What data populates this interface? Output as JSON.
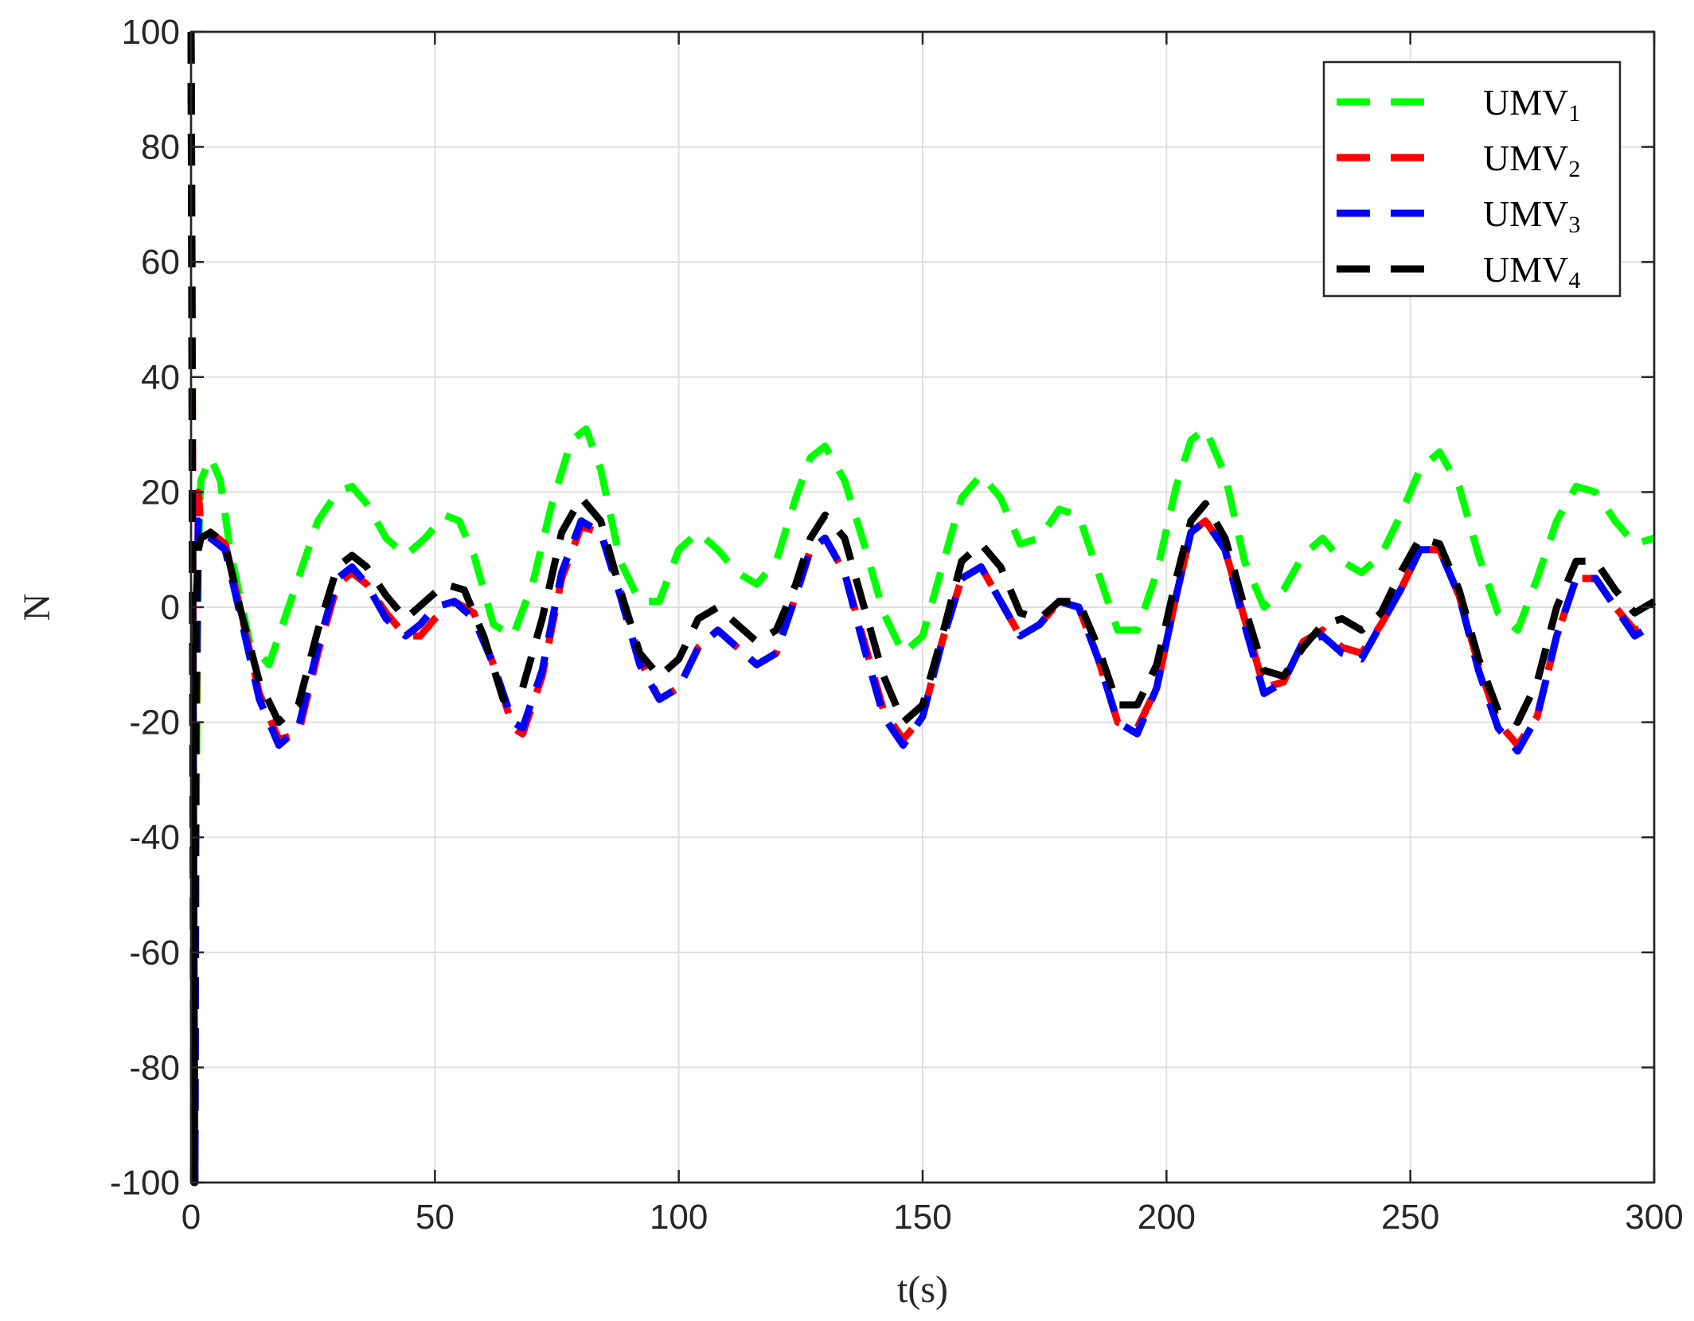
{
  "chart_data": {
    "type": "line",
    "title": "",
    "xlabel": "t(s)",
    "ylabel": "N",
    "xlim": [
      0,
      300
    ],
    "ylim": [
      -100,
      100
    ],
    "xticks": [
      0,
      50,
      100,
      150,
      200,
      250,
      300
    ],
    "yticks": [
      -100,
      -80,
      -60,
      -40,
      -20,
      0,
      20,
      40,
      60,
      80,
      100
    ],
    "grid": true,
    "legend": {
      "placement": "top-right"
    },
    "series": [
      {
        "name": "UMV",
        "subscript": "1",
        "color": "#00ff00",
        "style": "dashed",
        "x": [
          0,
          0.2,
          0.4,
          0.6,
          0.8,
          1.0,
          1.5,
          2,
          4,
          6,
          8,
          12,
          16,
          20,
          26,
          30,
          33,
          36,
          40,
          44,
          48,
          52,
          55,
          58,
          62,
          66,
          70,
          74,
          78,
          81,
          84,
          88,
          92,
          96,
          100,
          104,
          108,
          112,
          116,
          120,
          124,
          127,
          130,
          134,
          138,
          142,
          146,
          150,
          154,
          158,
          162,
          166,
          170,
          174,
          178,
          182,
          186,
          190,
          194,
          198,
          202,
          205,
          208,
          212,
          216,
          220,
          224,
          228,
          232,
          236,
          240,
          244,
          248,
          252,
          256,
          260,
          264,
          268,
          272,
          276,
          280,
          284,
          288,
          292,
          296,
          300
        ],
        "values": [
          100,
          60,
          0,
          -60,
          -100,
          -40,
          10,
          22,
          26,
          22,
          10,
          -6,
          -10,
          0,
          15,
          20,
          21,
          18,
          12,
          9,
          12,
          16,
          15,
          9,
          -3,
          -5,
          4,
          18,
          29,
          31,
          24,
          8,
          1,
          1,
          10,
          13,
          10,
          6,
          4,
          8,
          19,
          26,
          28,
          22,
          11,
          -1,
          -8,
          -5,
          7,
          19,
          23,
          19,
          11,
          12,
          17,
          16,
          6,
          -4,
          -4,
          6,
          21,
          29,
          31,
          23,
          8,
          0,
          3,
          9,
          12,
          8,
          6,
          9,
          16,
          24,
          27,
          21,
          9,
          -1,
          -4,
          5,
          15,
          21,
          20,
          15,
          11,
          12
        ]
      },
      {
        "name": "UMV",
        "subscript": "2",
        "color": "#ff0000",
        "style": "dashed",
        "x": [
          0,
          0.2,
          0.4,
          0.6,
          0.8,
          1.0,
          1.5,
          2,
          4,
          7,
          10,
          14,
          18,
          22,
          26,
          30,
          33,
          36,
          40,
          44,
          47,
          50,
          54,
          58,
          62,
          66,
          68,
          72,
          76,
          80,
          84,
          88,
          92,
          96,
          100,
          104,
          108,
          112,
          116,
          120,
          124,
          127,
          130,
          134,
          138,
          142,
          146,
          150,
          154,
          158,
          162,
          166,
          170,
          174,
          178,
          182,
          186,
          190,
          194,
          198,
          202,
          205,
          208,
          212,
          216,
          220,
          224,
          228,
          232,
          236,
          240,
          244,
          248,
          252,
          256,
          260,
          264,
          268,
          272,
          276,
          280,
          284,
          288,
          292,
          296,
          300
        ],
        "values": [
          100,
          60,
          0,
          -60,
          -100,
          -30,
          20,
          14,
          13,
          11,
          0,
          -15,
          -23,
          -22,
          -8,
          4,
          6,
          4,
          -1,
          -5,
          -5,
          -2,
          1,
          -1,
          -10,
          -21,
          -22,
          -12,
          5,
          14,
          13,
          3,
          -9,
          -16,
          -14,
          -7,
          -4,
          -7,
          -10,
          -8,
          2,
          10,
          12,
          6,
          -6,
          -18,
          -23,
          -19,
          -6,
          5,
          7,
          1,
          -5,
          -3,
          1,
          0,
          -9,
          -20,
          -21,
          -14,
          2,
          13,
          15,
          10,
          -2,
          -14,
          -13,
          -6,
          -4,
          -7,
          -8,
          -3,
          3,
          10,
          10,
          2,
          -10,
          -20,
          -24,
          -19,
          -5,
          5,
          5,
          0,
          -4,
          -3
        ]
      },
      {
        "name": "UMV",
        "subscript": "3",
        "color": "#0000ff",
        "style": "dashed",
        "x": [
          0,
          0.2,
          0.4,
          0.6,
          0.8,
          1.0,
          1.5,
          2,
          4,
          7,
          10,
          14,
          18,
          22,
          26,
          30,
          33,
          36,
          40,
          44,
          47,
          50,
          54,
          58,
          62,
          66,
          68,
          72,
          76,
          80,
          84,
          88,
          92,
          96,
          100,
          104,
          108,
          112,
          116,
          120,
          124,
          127,
          130,
          134,
          138,
          142,
          146,
          150,
          154,
          158,
          162,
          166,
          170,
          174,
          178,
          182,
          186,
          190,
          194,
          198,
          202,
          205,
          208,
          212,
          216,
          220,
          224,
          228,
          232,
          236,
          240,
          244,
          248,
          252,
          256,
          260,
          264,
          268,
          272,
          276,
          280,
          284,
          288,
          292,
          296,
          300
        ],
        "values": [
          100,
          50,
          -20,
          -70,
          -100,
          -20,
          15,
          13,
          12,
          10,
          -1,
          -16,
          -24,
          -21,
          -7,
          5,
          7,
          4,
          -2,
          -5,
          -3,
          0,
          1,
          -2,
          -10,
          -20,
          -21,
          -11,
          6,
          15,
          13,
          2,
          -10,
          -16,
          -14,
          -7,
          -4,
          -7,
          -10,
          -8,
          2,
          10,
          12,
          6,
          -7,
          -19,
          -24,
          -19,
          -6,
          5,
          7,
          1,
          -5,
          -3,
          1,
          0,
          -9,
          -20,
          -22,
          -14,
          2,
          13,
          15,
          10,
          -3,
          -15,
          -13,
          -6,
          -5,
          -8,
          -9,
          -3,
          3,
          10,
          10,
          2,
          -11,
          -21,
          -25,
          -19,
          -5,
          5,
          5,
          0,
          -5,
          -3
        ]
      },
      {
        "name": "UMV",
        "subscript": "4",
        "color": "#000000",
        "style": "dashed",
        "x": [
          0,
          0.2,
          0.4,
          0.6,
          0.8,
          1.0,
          1.5,
          2,
          4,
          7,
          10,
          14,
          18,
          22,
          26,
          30,
          33,
          36,
          40,
          44,
          48,
          52,
          56,
          60,
          64,
          68,
          72,
          76,
          80,
          84,
          88,
          92,
          96,
          100,
          104,
          108,
          112,
          116,
          120,
          124,
          127,
          130,
          134,
          138,
          142,
          146,
          150,
          154,
          158,
          162,
          166,
          170,
          174,
          178,
          182,
          186,
          190,
          194,
          198,
          202,
          205,
          208,
          212,
          216,
          220,
          224,
          228,
          232,
          236,
          240,
          244,
          248,
          252,
          256,
          260,
          264,
          268,
          272,
          276,
          280,
          284,
          288,
          292,
          296,
          300
        ],
        "values": [
          100,
          40,
          -40,
          -100,
          -60,
          0,
          10,
          12,
          13,
          11,
          0,
          -13,
          -20,
          -17,
          -4,
          7,
          9,
          7,
          2,
          -2,
          1,
          4,
          3,
          -5,
          -16,
          -14,
          -2,
          13,
          19,
          15,
          3,
          -8,
          -12,
          -9,
          -2,
          0,
          -3,
          -6,
          -4,
          4,
          12,
          16,
          12,
          0,
          -12,
          -20,
          -17,
          -5,
          8,
          11,
          7,
          -1,
          -2,
          1,
          1,
          -7,
          -17,
          -17,
          -10,
          5,
          15,
          18,
          12,
          0,
          -11,
          -12,
          -7,
          -3,
          -2,
          -4,
          -1,
          6,
          12,
          11,
          3,
          -9,
          -18,
          -20,
          -13,
          0,
          8,
          8,
          3,
          -1,
          1
        ]
      }
    ]
  }
}
